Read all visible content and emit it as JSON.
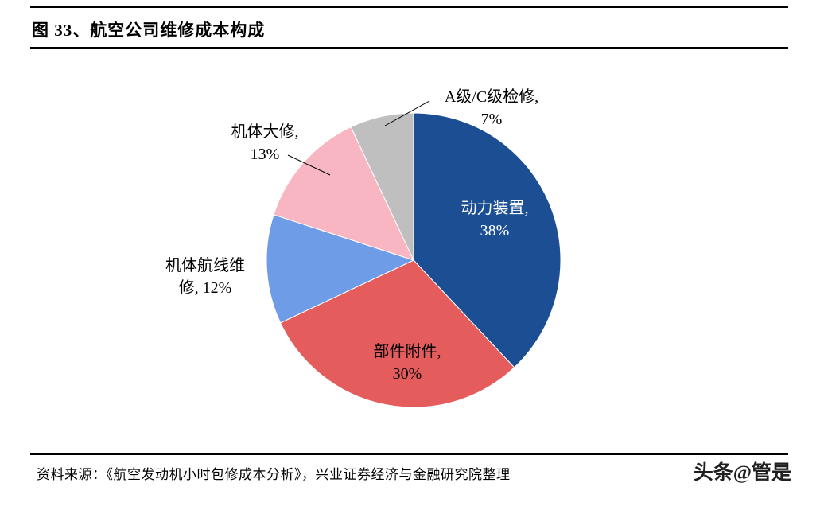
{
  "figure": {
    "title": "图 33、航空公司维修成本构成",
    "source": "资料来源：《航空发动机小时包修成本分析》，兴业证券经济与金融研究院整理",
    "watermark": "头条@管是"
  },
  "chart_data": {
    "type": "pie",
    "title": "航空公司维修成本构成",
    "start_angle_deg": 0,
    "direction": "clockwise",
    "legend_position": "none",
    "segments": [
      {
        "label": "动力装置",
        "value": 38,
        "unit": "%",
        "color": "#1b4e92",
        "label_position": "inside",
        "text_color": "#ffffff",
        "display": "动力装置,\n38%"
      },
      {
        "label": "部件附件",
        "value": 30,
        "unit": "%",
        "color": "#e45c5c",
        "label_position": "inside",
        "text_color": "#000000",
        "display": "部件附件,\n30%"
      },
      {
        "label": "机体航线维修",
        "value": 12,
        "unit": "%",
        "color": "#6f9ce6",
        "label_position": "outside",
        "text_color": "#000000",
        "display": "机体航线维\n修, 12%"
      },
      {
        "label": "机体大修",
        "value": 13,
        "unit": "%",
        "color": "#f7b6c2",
        "label_position": "outside",
        "text_color": "#000000",
        "display": "机体大修,\n13%"
      },
      {
        "label": "A级/C级检修",
        "value": 7,
        "unit": "%",
        "color": "#bfbfbf",
        "label_position": "outside",
        "text_color": "#000000",
        "display": "A级/C级检修,\n7%"
      }
    ]
  }
}
